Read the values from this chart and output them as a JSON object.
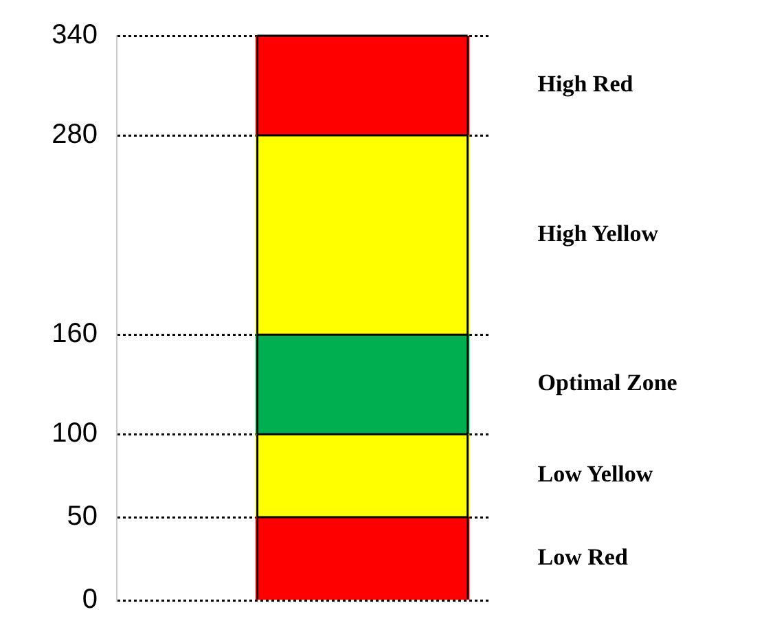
{
  "chart_data": {
    "type": "bar",
    "stacked": true,
    "categories": [
      null
    ],
    "series": [
      {
        "name": "Low Red",
        "color": "#ff0000",
        "values": [
          50
        ]
      },
      {
        "name": "Low Yellow",
        "color": "#ffff00",
        "values": [
          50
        ]
      },
      {
        "name": "Optimal Zone",
        "color": "#00b050",
        "values": [
          60
        ]
      },
      {
        "name": "High Yellow",
        "color": "#ffff00",
        "values": [
          120
        ]
      },
      {
        "name": "High Red",
        "color": "#ff0000",
        "values": [
          60
        ]
      }
    ],
    "ylim": [
      0,
      340
    ],
    "yticks": [
      0,
      50,
      100,
      160,
      280,
      340
    ],
    "grid": "y",
    "legend": false
  }
}
